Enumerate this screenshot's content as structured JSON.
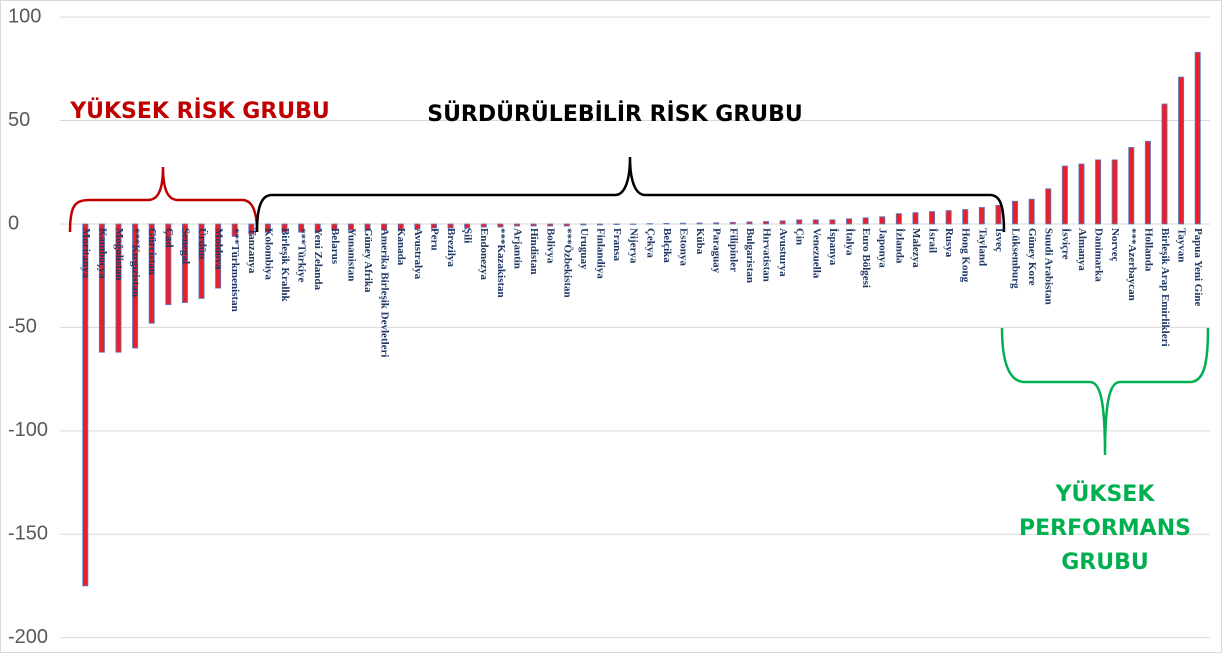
{
  "chart_data": {
    "type": "bar",
    "categories": [
      "Moritanya",
      "Kamboçya",
      "Moğolistan",
      "***Kırgızistan",
      "Gürcistan",
      "Çad",
      "Senegal",
      "Ürdün",
      "Moldova",
      "***Türkmenistan",
      "Tanzanya",
      "Kolombiya",
      "Birleşik Krallık",
      "***Türkiye",
      "Yeni Zelanda",
      "Belarus",
      "Yunanistan",
      "Güney Afrika",
      "Amerika Birleşik Devletleri",
      "Kanada",
      "Avustralya",
      "Peru",
      "Brezilya",
      "Şili",
      "Endonezya",
      "***Kazakistan",
      "Arjantin",
      "Hindistan",
      "Bolivya",
      "***Özbekistan",
      "Uruguay",
      "Finlandiya",
      "Fransa",
      "Nijerya",
      "Çekya",
      "Belçika",
      "Estonya",
      "Küba",
      "Paraguay",
      "Filipinler",
      "Bulgaristan",
      "Hırvatistan",
      "Avusturya",
      "Çin",
      "Venezuella",
      "İspanya",
      "İtalya",
      "Euro Bölgesi",
      "Japonya",
      "İzlanda",
      "Malezya",
      "İsrail",
      "Rusya",
      "Hong Kong",
      "Tayland",
      "İsveç",
      "Lüksemburg",
      "Güney Kore",
      "Suudi Arabistan",
      "İsviçre",
      "Almanya",
      "Danimarka",
      "Norveç",
      "***Azerbaycan",
      "Hollanda",
      "Birleşik Arap Emirlikleri",
      "Tayvan",
      "Papua Yeni Gine"
    ],
    "values": [
      -175,
      -62,
      -62,
      -60,
      -48,
      -39,
      -38,
      -36,
      -31,
      -6,
      -5,
      -4,
      -4,
      -4,
      -3.5,
      -3,
      -3,
      -3,
      -3,
      -2.5,
      -2.5,
      -2,
      -2,
      -2,
      -1.5,
      -1.5,
      -1,
      -1,
      -1,
      -1,
      -0.5,
      -0.5,
      -0.3,
      -0.2,
      0.2,
      0.3,
      0.4,
      0.5,
      0.6,
      0.8,
      1,
      1.2,
      1.5,
      2,
      2,
      2,
      2.5,
      3,
      3.5,
      5,
      5.5,
      6,
      6.5,
      7,
      8,
      9,
      11,
      12,
      17,
      28,
      29,
      31,
      31,
      37,
      40,
      58,
      71,
      83
    ],
    "color": "#e8202a",
    "ylim": [
      -205,
      102
    ],
    "yticks": [
      -200,
      -150,
      -100,
      -50,
      0,
      50,
      100
    ],
    "grid": true,
    "annotations": [
      {
        "lines": [
          "YÜKSEK RİSK GRUBU"
        ],
        "color": "#c00000"
      },
      {
        "lines": [
          "SÜRDÜRÜLEBİLİR RİSK GRUBU"
        ],
        "color": "#000000"
      },
      {
        "lines": [
          "YÜKSEK",
          "PERFORMANS",
          "GRUBU"
        ],
        "color": "#00b050"
      }
    ]
  }
}
